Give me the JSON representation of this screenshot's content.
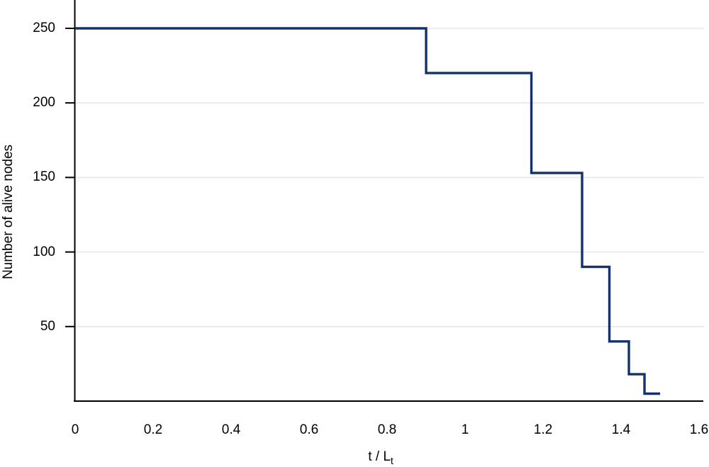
{
  "chart": {
    "background": "#ffffff",
    "xlabel_main": "t / L",
    "xlabel_sub": "t",
    "ylabel": "Number of alive nodes",
    "colors": {
      "line": "#14306d",
      "grid": "#e8e8e8",
      "axis": "#000000",
      "text": "#000000"
    }
  },
  "chart_data": {
    "type": "line",
    "subtype": "step",
    "step_mode": "post",
    "title": "",
    "xlabel": "t / L_t",
    "ylabel": "Number of alive nodes",
    "xlim": [
      0,
      1.6
    ],
    "ylim": [
      0,
      269
    ],
    "x_tick_values": [
      0,
      0.2,
      0.4,
      0.6,
      0.8,
      1,
      1.2,
      1.4,
      1.6
    ],
    "x_tick_labels": [
      "0",
      "0.2",
      "0.4",
      "0.6",
      "0.8",
      "1",
      "1.2",
      "1.4",
      "1.6"
    ],
    "y_tick_values": [
      50,
      100,
      150,
      200,
      250
    ],
    "y_tick_labels": [
      "50",
      "100",
      "150",
      "200",
      "250"
    ],
    "grid": "horizontal-only",
    "legend": "none",
    "series": [
      {
        "name": "Number of alive nodes",
        "color": "#14306d",
        "points": [
          [
            0,
            250
          ],
          [
            0.9,
            250
          ],
          [
            0.9,
            220
          ],
          [
            1.17,
            220
          ],
          [
            1.17,
            153
          ],
          [
            1.3,
            153
          ],
          [
            1.3,
            90
          ],
          [
            1.37,
            90
          ],
          [
            1.37,
            40
          ],
          [
            1.42,
            40
          ],
          [
            1.42,
            18
          ],
          [
            1.46,
            18
          ],
          [
            1.46,
            5
          ],
          [
            1.5,
            5
          ]
        ]
      }
    ]
  }
}
